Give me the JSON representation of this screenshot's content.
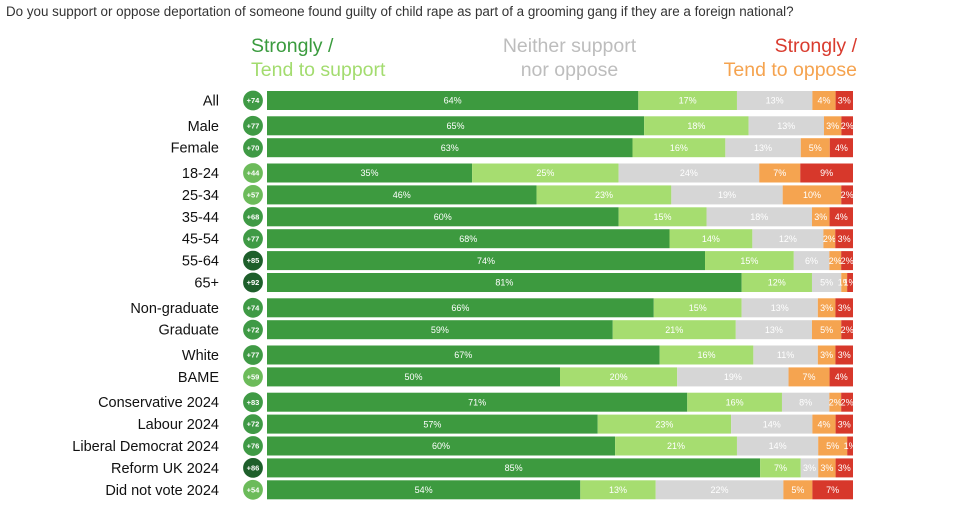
{
  "question": "Do you support or oppose deportation of someone found guilty of child rape as part of a grooming gang if they are a foreign national?",
  "legend": {
    "support_line1": "Strongly /",
    "support_line2": "Tend to support",
    "neither_line1": "Neither support",
    "neither_line2": "nor oppose",
    "oppose_line1": "Strongly /",
    "oppose_line2": "Tend to oppose"
  },
  "colors": {
    "strongly_support": "#3d9a3f",
    "tend_support": "#a6dd70",
    "neither": "#d6d6d6",
    "tend_oppose": "#f5a450",
    "strongly_oppose": "#d7382b",
    "net_circle_light": "#6cbb5a",
    "net_circle_mid": "#3f9a45",
    "net_circle_dark": "#1e5f2b"
  },
  "chart_data": {
    "type": "bar",
    "orientation": "horizontal-stacked-100",
    "series_keys": [
      "strongly_support",
      "tend_support",
      "neither",
      "tend_oppose",
      "strongly_oppose"
    ],
    "categories": [
      "All",
      "Male",
      "Female",
      "18-24",
      "25-34",
      "35-44",
      "45-54",
      "55-64",
      "65+",
      "Non-graduate",
      "Graduate",
      "White",
      "BAME",
      "Conservative 2024",
      "Labour 2024",
      "Liberal Democrat 2024",
      "Reform UK 2024",
      "Did not vote 2024"
    ],
    "groups": [
      [
        0
      ],
      [
        1,
        2
      ],
      [
        3,
        4,
        5,
        6,
        7,
        8
      ],
      [
        9,
        10
      ],
      [
        11,
        12
      ],
      [
        13,
        14,
        15,
        16,
        17
      ]
    ],
    "net_labels": [
      "+74",
      "+77",
      "+70",
      "+44",
      "+57",
      "+68",
      "+77",
      "+85",
      "+92",
      "+74",
      "+72",
      "+77",
      "+59",
      "+83",
      "+72",
      "+76",
      "+86",
      "+54"
    ],
    "net_values": [
      74,
      77,
      70,
      44,
      57,
      68,
      77,
      85,
      92,
      74,
      72,
      77,
      59,
      83,
      72,
      76,
      86,
      54
    ],
    "rows": [
      [
        64,
        17,
        13,
        4,
        3
      ],
      [
        65,
        18,
        13,
        3,
        2
      ],
      [
        63,
        16,
        13,
        5,
        4
      ],
      [
        35,
        25,
        24,
        7,
        9
      ],
      [
        46,
        23,
        19,
        10,
        2
      ],
      [
        60,
        15,
        18,
        3,
        4
      ],
      [
        68,
        14,
        12,
        2,
        3
      ],
      [
        74,
        15,
        6,
        2,
        2
      ],
      [
        81,
        12,
        5,
        1,
        1
      ],
      [
        66,
        15,
        13,
        3,
        3
      ],
      [
        59,
        21,
        13,
        5,
        2
      ],
      [
        67,
        16,
        11,
        3,
        3
      ],
      [
        50,
        20,
        19,
        7,
        4
      ],
      [
        71,
        16,
        8,
        2,
        2
      ],
      [
        57,
        23,
        14,
        4,
        3
      ],
      [
        60,
        21,
        14,
        5,
        1
      ],
      [
        85,
        7,
        3,
        3,
        3
      ],
      [
        54,
        13,
        22,
        5,
        7
      ]
    ],
    "value_labels": [
      [
        "64%",
        "17%",
        "13%",
        "4%",
        "3%"
      ],
      [
        "65%",
        "18%",
        "13%",
        "3%",
        "2%"
      ],
      [
        "63%",
        "16%",
        "13%",
        "5%",
        "4%"
      ],
      [
        "35%",
        "25%",
        "24%",
        "7%",
        "9%"
      ],
      [
        "46%",
        "23%",
        "19%",
        "10%",
        "2%"
      ],
      [
        "60%",
        "15%",
        "18%",
        "3%",
        "4%"
      ],
      [
        "68%",
        "14%",
        "12%",
        "2%",
        "3%"
      ],
      [
        "74%",
        "15%",
        "6%",
        "2%",
        "2%"
      ],
      [
        "81%",
        "12%",
        "5%",
        "1%",
        "1%"
      ],
      [
        "66%",
        "15%",
        "13%",
        "3%",
        "3%"
      ],
      [
        "59%",
        "21%",
        "13%",
        "5%",
        "2%"
      ],
      [
        "67%",
        "16%",
        "11%",
        "3%",
        "3%"
      ],
      [
        "50%",
        "20%",
        "19%",
        "7%",
        "4%"
      ],
      [
        "71%",
        "16%",
        "8%",
        "2%",
        "2%"
      ],
      [
        "57%",
        "23%",
        "14%",
        "4%",
        "3%"
      ],
      [
        "60%",
        "21%",
        "14%",
        "5%",
        "1%"
      ],
      [
        "85%",
        "7%",
        "3%",
        "3%",
        "3%"
      ],
      [
        "54%",
        "13%",
        "22%",
        "5%",
        "7%"
      ]
    ],
    "legend_position": "top",
    "grid": false
  }
}
